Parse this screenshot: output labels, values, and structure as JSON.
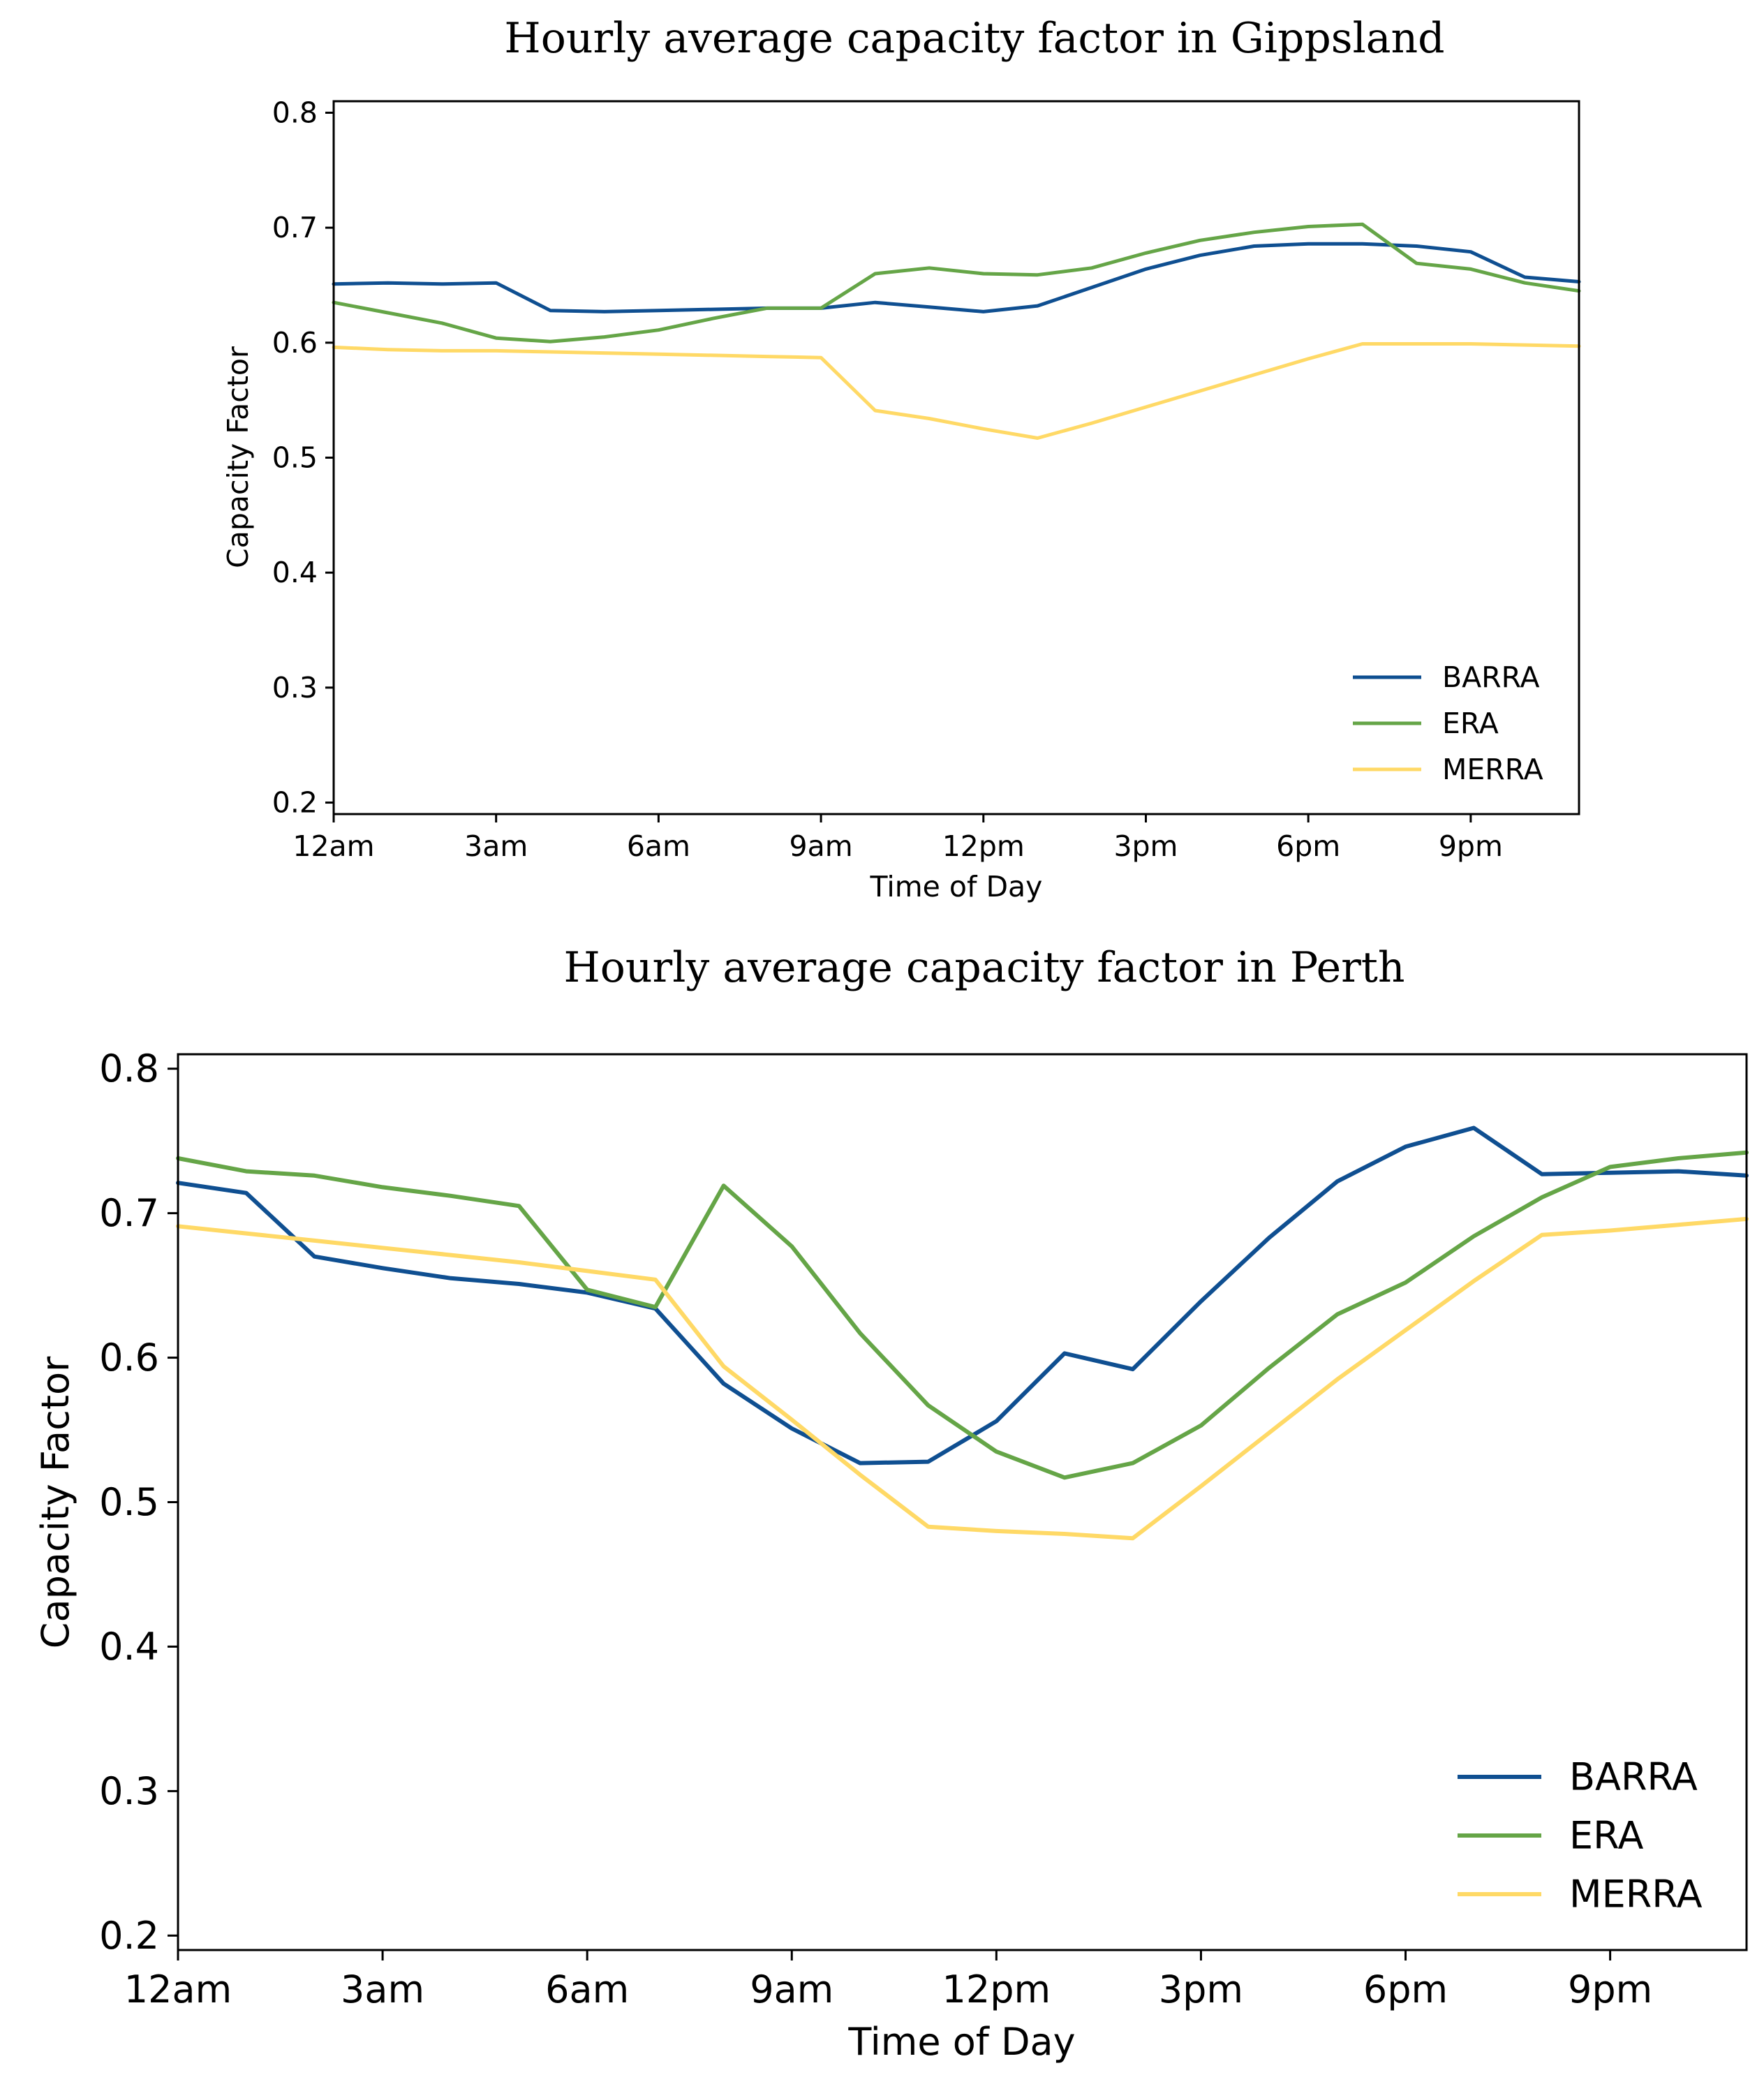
{
  "chart_data": [
    {
      "type": "line",
      "title": "Hourly average capacity factor in Gippsland",
      "xlabel": "Time of Day",
      "ylabel": "Capacity Factor",
      "xlim": [
        0,
        23
      ],
      "ylim": [
        0.19,
        0.81
      ],
      "yticks": [
        0.2,
        0.3,
        0.4,
        0.5,
        0.6,
        0.7,
        0.8
      ],
      "xticks": [
        {
          "hour": 0,
          "label": "12am"
        },
        {
          "hour": 3,
          "label": "3am"
        },
        {
          "hour": 6,
          "label": "6am"
        },
        {
          "hour": 9,
          "label": "9am"
        },
        {
          "hour": 12,
          "label": "12pm"
        },
        {
          "hour": 15,
          "label": "3pm"
        },
        {
          "hour": 18,
          "label": "6pm"
        },
        {
          "hour": 21,
          "label": "9pm"
        }
      ],
      "legend_position": "lower-right",
      "x": [
        0,
        1,
        2,
        3,
        4,
        5,
        6,
        7,
        8,
        9,
        10,
        11,
        12,
        13,
        14,
        15,
        16,
        17,
        18,
        19,
        20,
        21,
        22,
        23
      ],
      "series": [
        {
          "name": "BARRA",
          "color": "#0f4f91",
          "values": [
            0.651,
            0.652,
            0.651,
            0.652,
            0.628,
            0.627,
            0.628,
            0.629,
            0.63,
            0.63,
            0.635,
            0.631,
            0.627,
            0.632,
            0.648,
            0.664,
            0.676,
            0.684,
            0.686,
            0.686,
            0.684,
            0.679,
            0.657,
            0.653
          ]
        },
        {
          "name": "ERA",
          "color": "#65a547",
          "values": [
            0.635,
            0.626,
            0.617,
            0.604,
            0.601,
            0.605,
            0.611,
            0.621,
            0.63,
            0.63,
            0.66,
            0.665,
            0.66,
            0.659,
            0.665,
            0.678,
            0.689,
            0.696,
            0.701,
            0.703,
            0.669,
            0.664,
            0.652,
            0.645
          ]
        },
        {
          "name": "MERRA",
          "color": "#ffd966",
          "values": [
            0.596,
            0.594,
            0.593,
            0.593,
            0.592,
            0.591,
            0.59,
            0.589,
            0.588,
            0.587,
            0.541,
            0.534,
            0.525,
            0.517,
            0.53,
            0.544,
            0.558,
            0.572,
            0.586,
            0.599,
            0.599,
            0.599,
            0.598,
            0.597
          ]
        }
      ]
    },
    {
      "type": "line",
      "title": "Hourly average capacity factor in Perth",
      "xlabel": "Time of Day",
      "ylabel": "Capacity Factor",
      "xlim": [
        0,
        23
      ],
      "ylim": [
        0.19,
        0.81
      ],
      "yticks": [
        0.2,
        0.3,
        0.4,
        0.5,
        0.6,
        0.7,
        0.8
      ],
      "xticks": [
        {
          "hour": 0,
          "label": "12am"
        },
        {
          "hour": 3,
          "label": "3am"
        },
        {
          "hour": 6,
          "label": "6am"
        },
        {
          "hour": 9,
          "label": "9am"
        },
        {
          "hour": 12,
          "label": "12pm"
        },
        {
          "hour": 15,
          "label": "3pm"
        },
        {
          "hour": 18,
          "label": "6pm"
        },
        {
          "hour": 21,
          "label": "9pm"
        }
      ],
      "legend_position": "lower-right",
      "x": [
        0,
        1,
        2,
        3,
        4,
        5,
        6,
        7,
        8,
        9,
        10,
        11,
        12,
        13,
        14,
        15,
        16,
        17,
        18,
        19,
        20,
        21,
        22,
        23
      ],
      "series": [
        {
          "name": "BARRA",
          "color": "#0f4f91",
          "values": [
            0.721,
            0.714,
            0.67,
            0.662,
            0.655,
            0.651,
            0.645,
            0.634,
            0.582,
            0.551,
            0.527,
            0.528,
            0.556,
            0.603,
            0.592,
            0.639,
            0.683,
            0.722,
            0.746,
            0.759,
            0.727,
            0.728,
            0.729,
            0.726
          ]
        },
        {
          "name": "ERA",
          "color": "#65a547",
          "values": [
            0.738,
            0.729,
            0.726,
            0.718,
            0.712,
            0.705,
            0.647,
            0.635,
            0.719,
            0.677,
            0.617,
            0.567,
            0.535,
            0.517,
            0.527,
            0.553,
            0.593,
            0.63,
            0.652,
            0.684,
            0.711,
            0.732,
            0.738,
            0.742
          ]
        },
        {
          "name": "MERRA",
          "color": "#ffd966",
          "values": [
            0.691,
            0.686,
            0.681,
            0.676,
            0.671,
            0.666,
            0.66,
            0.654,
            0.594,
            0.557,
            0.519,
            0.483,
            0.48,
            0.478,
            0.475,
            0.511,
            0.548,
            0.585,
            0.619,
            0.653,
            0.685,
            0.688,
            0.692,
            0.696
          ]
        }
      ]
    }
  ]
}
